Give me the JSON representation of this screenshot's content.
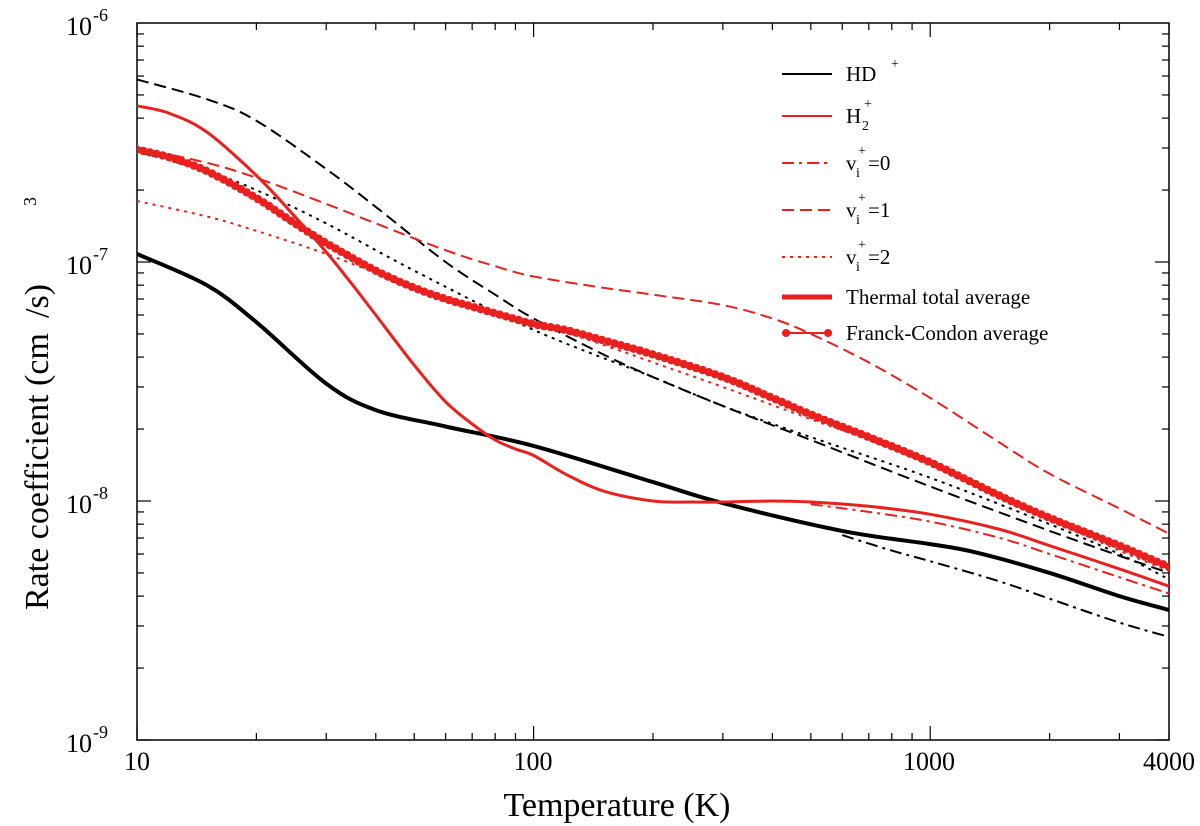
{
  "chart_data": {
    "type": "line",
    "title": "",
    "xlabel": "Temperature (K)",
    "ylabel": "Rate coefficient (cm",
    "ylabel_sup": "3",
    "ylabel_tail": "/s)",
    "xscale": "log",
    "yscale": "log",
    "xlim": [
      10,
      4000
    ],
    "ylim": [
      1e-09,
      1e-06
    ],
    "grid": false,
    "legend_position": "top-right",
    "x_ticks": [
      {
        "value": 10,
        "label": "10"
      },
      {
        "value": 100,
        "label": "100"
      },
      {
        "value": 1000,
        "label": "1000"
      },
      {
        "value": 4000,
        "label": "4000"
      }
    ],
    "y_ticks": [
      {
        "value": 1e-09,
        "base": "10",
        "exp": "-9"
      },
      {
        "value": 1e-08,
        "base": "10",
        "exp": "-8"
      },
      {
        "value": 1e-07,
        "base": "10",
        "exp": "-7"
      },
      {
        "value": 1e-06,
        "base": "10",
        "exp": "-6"
      }
    ],
    "legend": [
      {
        "id": "hd",
        "base": "HD",
        "sub": "",
        "sup": "+",
        "tail": "",
        "color": "#000000",
        "style": "solid",
        "width": 2
      },
      {
        "id": "h2",
        "base": "H",
        "sub": "2",
        "sup": "+",
        "tail": "",
        "color": "#e8201e",
        "style": "solid",
        "width": 2
      },
      {
        "id": "v0",
        "base": "v",
        "sub": "i",
        "sup": "+",
        "tail": "=0",
        "color": "#e8201e",
        "style": "dashdot",
        "width": 2
      },
      {
        "id": "v1",
        "base": "v",
        "sub": "i",
        "sup": "+",
        "tail": "=1",
        "color": "#e8201e",
        "style": "dashed",
        "width": 2
      },
      {
        "id": "v2",
        "base": "v",
        "sub": "i",
        "sup": "+",
        "tail": "=2",
        "color": "#e8201e",
        "style": "dotted",
        "width": 2
      },
      {
        "id": "thermal",
        "base": "Thermal total average",
        "sub": "",
        "sup": "",
        "tail": "",
        "color": "#e8201e",
        "style": "solid",
        "width": 5
      },
      {
        "id": "fc",
        "base": "Franck-Condon average",
        "sub": "",
        "sup": "",
        "tail": "",
        "color": "#e8201e",
        "style": "solid-markers",
        "width": 2
      }
    ],
    "series": [
      {
        "name": "HD+ thermal total average",
        "color": "#000000",
        "style": "solid",
        "width": 4,
        "x": [
          10,
          15,
          20,
          30,
          40,
          60,
          100,
          200,
          300,
          600,
          1000,
          1300,
          2000,
          3000,
          4000
        ],
        "y": [
          1.08e-07,
          8e-08,
          5.6e-08,
          3.1e-08,
          2.4e-08,
          2.05e-08,
          1.7e-08,
          1.2e-08,
          9.8e-09,
          7.5e-09,
          6.6e-09,
          6.1e-09,
          5e-09,
          4e-09,
          3.5e-09
        ]
      },
      {
        "name": "HD+ vi+=0",
        "color": "#000000",
        "style": "dashdot",
        "width": 2,
        "x": [
          600,
          800,
          1000,
          1500,
          2000,
          3000,
          4000
        ],
        "y": [
          7.2e-09,
          6.2e-09,
          5.6e-09,
          4.6e-09,
          3.9e-09,
          3.1e-09,
          2.7e-09
        ]
      },
      {
        "name": "HD+ vi+=1",
        "color": "#000000",
        "style": "dashed",
        "width": 2,
        "x": [
          10,
          15,
          20,
          30,
          40,
          60,
          80,
          100,
          150,
          200,
          300,
          500,
          1000,
          2000,
          3000,
          4000
        ],
        "y": [
          5.8e-07,
          4.8e-07,
          3.9e-07,
          2.45e-07,
          1.7e-07,
          1e-07,
          7.3e-08,
          5.8e-08,
          4.1e-08,
          3.3e-08,
          2.5e-08,
          1.8e-08,
          1.15e-08,
          7.5e-09,
          5.9e-09,
          5e-09
        ]
      },
      {
        "name": "HD+ vi+=2",
        "color": "#000000",
        "style": "dotted",
        "width": 2,
        "x": [
          10,
          15,
          20,
          30,
          50,
          100,
          200,
          300,
          500,
          1000,
          2000,
          3000,
          4000
        ],
        "y": [
          2.9e-07,
          2.4e-07,
          2e-07,
          1.45e-07,
          9.2e-08,
          5.2e-08,
          3.3e-08,
          2.5e-08,
          1.85e-08,
          1.25e-08,
          8e-09,
          6e-09,
          4.7e-09
        ]
      },
      {
        "name": "H2+ thermal total average",
        "color": "#e8201e",
        "style": "solid",
        "width": 3,
        "x": [
          10,
          12,
          15,
          20,
          25,
          30,
          35,
          40,
          50,
          60,
          70,
          80,
          90,
          100,
          120,
          150,
          200,
          250,
          300,
          400,
          500,
          700,
          1000,
          1500,
          2000,
          3000,
          4000
        ],
        "y": [
          4.5e-07,
          4.2e-07,
          3.5e-07,
          2.3e-07,
          1.55e-07,
          1.1e-07,
          8e-08,
          6e-08,
          3.7e-08,
          2.6e-08,
          2.1e-08,
          1.8e-08,
          1.65e-08,
          1.55e-08,
          1.3e-08,
          1.1e-08,
          1e-08,
          9.9e-09,
          9.9e-09,
          1e-08,
          9.9e-09,
          9.5e-09,
          8.8e-09,
          7.6e-09,
          6.5e-09,
          5.2e-09,
          4.4e-09
        ]
      },
      {
        "name": "H2+ vi+=0",
        "color": "#e8201e",
        "style": "dashdot",
        "width": 2,
        "x": [
          500,
          700,
          1000,
          1500,
          2000,
          3000,
          4000
        ],
        "y": [
          9.7e-09,
          9e-09,
          8.2e-09,
          7e-09,
          6e-09,
          4.8e-09,
          4.1e-09
        ]
      },
      {
        "name": "H2+ vi+=1",
        "color": "#e8201e",
        "style": "dashed",
        "width": 2,
        "x": [
          10,
          15,
          20,
          30,
          40,
          60,
          80,
          100,
          150,
          200,
          300,
          400,
          500,
          700,
          1000,
          1500,
          2000,
          3000,
          4000
        ],
        "y": [
          3e-07,
          2.6e-07,
          2.25e-07,
          1.75e-07,
          1.45e-07,
          1.12e-07,
          9.6e-08,
          8.7e-08,
          7.8e-08,
          7.3e-08,
          6.6e-08,
          5.8e-08,
          5e-08,
          3.8e-08,
          2.7e-08,
          1.75e-08,
          1.3e-08,
          9.3e-09,
          7.3e-09
        ]
      },
      {
        "name": "H2+ vi+=2",
        "color": "#e8201e",
        "style": "dotted",
        "width": 2,
        "x": [
          10,
          15,
          20,
          30,
          50,
          70,
          100,
          150,
          200,
          300,
          500,
          700,
          1000,
          1500,
          2000,
          3000,
          4000
        ],
        "y": [
          1.8e-07,
          1.55e-07,
          1.35e-07,
          1.08e-07,
          7.8e-08,
          6.5e-08,
          5.6e-08,
          4.5e-08,
          3.8e-08,
          3e-08,
          2.2e-08,
          1.8e-08,
          1.42e-08,
          1.05e-08,
          8.4e-09,
          6.2e-09,
          5.1e-09
        ]
      },
      {
        "name": "H2+ Franck-Condon average",
        "color": "#e8201e",
        "style": "markers",
        "width": 3,
        "x": [
          10,
          12,
          15,
          20,
          25,
          30,
          40,
          50,
          60,
          70,
          80,
          100,
          120,
          150,
          200,
          300,
          400,
          500,
          700,
          1000,
          1500,
          2000,
          3000,
          4000
        ],
        "y": [
          2.95e-07,
          2.75e-07,
          2.4e-07,
          1.85e-07,
          1.45e-07,
          1.2e-07,
          9.2e-08,
          7.8e-08,
          7e-08,
          6.5e-08,
          6.1e-08,
          5.5e-08,
          5.2e-08,
          4.7e-08,
          4.1e-08,
          3.3e-08,
          2.7e-08,
          2.3e-08,
          1.85e-08,
          1.45e-08,
          1.05e-08,
          8.5e-09,
          6.5e-09,
          5.3e-09
        ]
      }
    ]
  }
}
